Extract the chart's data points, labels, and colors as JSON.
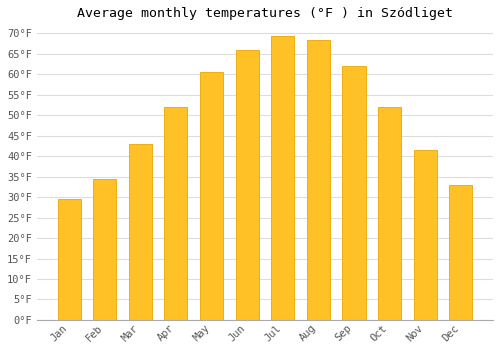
{
  "title": "Average monthly temperatures (°F ) in Szódliget",
  "months": [
    "Jan",
    "Feb",
    "Mar",
    "Apr",
    "May",
    "Jun",
    "Jul",
    "Aug",
    "Sep",
    "Oct",
    "Nov",
    "Dec"
  ],
  "values": [
    29.5,
    34.5,
    43.0,
    52.0,
    60.5,
    66.0,
    69.5,
    68.5,
    62.0,
    52.0,
    41.5,
    33.0
  ],
  "bar_color": "#FFC125",
  "bar_edge_color": "#E8A800",
  "background_color": "#FFFFFF",
  "grid_color": "#DDDDDD",
  "ylim": [
    0,
    72
  ],
  "ytick_step": 5,
  "font_family": "monospace",
  "title_fontsize": 9.5,
  "tick_fontsize": 7.5,
  "bar_width": 0.65
}
